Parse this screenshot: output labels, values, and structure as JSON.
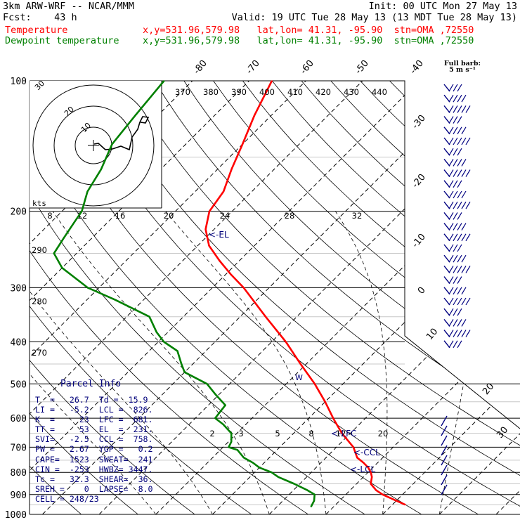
{
  "header": {
    "model": "3km ARW-WRF -- NCAR/MMM",
    "init": "Init: 00 UTC Mon 27 May 13",
    "fcst": "Fcst:    43 h",
    "valid": "Valid: 19 UTC Tue 28 May 13 (13 MDT Tue 28 May 13)",
    "temp_label": "Temperature",
    "temp_info": "x,y=531.96,579.98   lat,lon= 41.31, -95.90  stn=OMA ,72550",
    "dew_label": "Dewpoint temperature",
    "dew_info": "x,y=531.96,579.98   lat,lon= 41.31, -95.90  stn=OMA ,72550"
  },
  "colors": {
    "temperature": "#ff0000",
    "dewpoint": "#008000",
    "info": "#00007a",
    "grid": "#000000"
  },
  "wind_legend": {
    "line1": "Full barb:",
    "line2": "5 m s⁻¹"
  },
  "hodograph": {
    "ring_labels": [
      "10",
      "20",
      "30"
    ],
    "speed_unit": "kts",
    "speed_ticks": [
      "8",
      "12",
      "16",
      "20",
      "24",
      "28",
      "32"
    ]
  },
  "skewt_labels": {
    "pressure_levels": [
      "100",
      "200",
      "300",
      "400",
      "500",
      "600",
      "700",
      "800",
      "900",
      "1000"
    ],
    "isotherm_labels": [
      "-80",
      "-70",
      "-60",
      "-50",
      "-40",
      "-30",
      "-20",
      "-10",
      "0",
      "10",
      "20",
      "30",
      "40"
    ],
    "theta_top": [
      "370",
      "380",
      "390",
      "400",
      "410",
      "420",
      "430",
      "440"
    ],
    "theta_left": [
      "290",
      "280",
      "270"
    ],
    "mixing_ratio": [
      "2",
      "3",
      "5",
      "8",
      "12",
      "20"
    ],
    "level_markers": [
      "<-EL",
      "<-LFC",
      "<-CCL",
      "<-LCL"
    ]
  },
  "parcel_info": {
    "title": "Parcel Info",
    "rows": [
      "T  =   26.7  Td =  15.9",
      "LI =   -5.2  LCL =  826.",
      "K  =     23  LFC =  681.",
      "TT =     53  EL  =  231.",
      "SVI=   -2.5  CCL =  758.",
      "PW =   2.67  YGP =   0.2",
      "CAPE=  1523  SWEAT=  241",
      "CIN =  -253  HWBZ= 3447.",
      "Tc =   32.3  SHEAR=  36.",
      "SREH =    0  LAPSE=  8.0",
      "CELL = 248/23"
    ]
  },
  "chart_data": {
    "type": "line",
    "title": "",
    "xlabel": "",
    "ylabel": "",
    "y_scale": "log-pressure (hPa), inverted",
    "ylim": [
      1000,
      100
    ],
    "series": [
      {
        "name": "Temperature",
        "color": "#ff0000",
        "pressure": [
          950,
          930,
          900,
          880,
          850,
          820,
          800,
          780,
          760,
          740,
          700,
          650,
          600,
          550,
          500,
          450,
          400,
          350,
          300,
          280,
          260,
          240,
          220,
          200,
          180,
          160,
          140,
          120,
          100
        ],
        "values": [
          32.3,
          30.0,
          26.5,
          24.6,
          22.5,
          21.5,
          20.5,
          19.2,
          17.5,
          15.5,
          13.0,
          8.5,
          4.3,
          0.0,
          -5.0,
          -11.0,
          -17.5,
          -25.5,
          -34.5,
          -39.0,
          -43.5,
          -48.0,
          -51.5,
          -54.0,
          -55.0,
          -57.5,
          -60.0,
          -63.0,
          -66.0
        ]
      },
      {
        "name": "Dewpoint temperature",
        "color": "#008000",
        "pressure": [
          960,
          930,
          900,
          880,
          850,
          820,
          800,
          780,
          760,
          740,
          710,
          700,
          680,
          650,
          620,
          600,
          560,
          530,
          500,
          470,
          450,
          420,
          400,
          380,
          350,
          320,
          300,
          270,
          250,
          230,
          210,
          200,
          180,
          160,
          140,
          120,
          100
        ],
        "values": [
          16.0,
          15.5,
          14.5,
          12.5,
          9.0,
          5.0,
          3.0,
          0.0,
          -2.0,
          -4.5,
          -7.0,
          -9.0,
          -9.5,
          -11.0,
          -14.0,
          -16.5,
          -17.0,
          -20.5,
          -24.0,
          -30.0,
          -32.0,
          -35.0,
          -39.0,
          -42.0,
          -46.0,
          -55.0,
          -62.0,
          -70.0,
          -74.0,
          -75.0,
          -76.0,
          -76.5,
          -79.0,
          -80.5,
          -83.0,
          -84.0,
          -85.0
        ]
      }
    ]
  }
}
